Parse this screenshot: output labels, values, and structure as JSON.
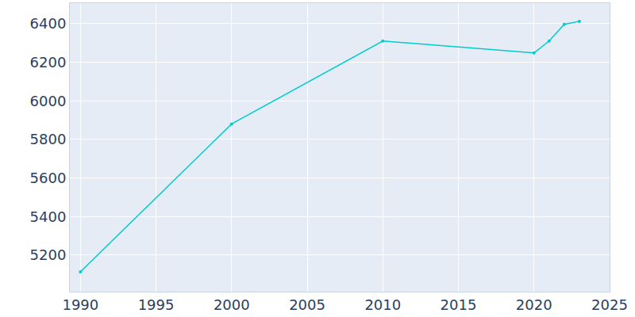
{
  "chart_data": {
    "type": "line",
    "x": [
      1990,
      2000,
      2010,
      2020,
      2021,
      2022,
      2023
    ],
    "values": [
      5114,
      5880,
      6310,
      6248,
      6310,
      6396,
      6412
    ],
    "color": "#00cccc",
    "marker": "circle",
    "line_style": "solid",
    "xlim": [
      1989.3,
      2025
    ],
    "xticks": [
      1990,
      1995,
      2000,
      2005,
      2010,
      2015,
      2020,
      2025
    ],
    "ylim": [
      5011,
      6506
    ],
    "yticks": [
      5200,
      5400,
      5600,
      5800,
      6000,
      6200,
      6400
    ],
    "grid": true
  }
}
